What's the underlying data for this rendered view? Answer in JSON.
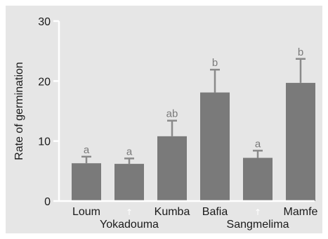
{
  "chart_data": {
    "type": "bar",
    "title": "",
    "xlabel": "",
    "ylabel": "Rate of germination",
    "ylim": [
      0,
      30
    ],
    "yticks": [
      "0",
      "10",
      "20",
      "30"
    ],
    "categories": [
      "Loum",
      "↑",
      "Kumba",
      "Bafia",
      "↑",
      "Mamfe"
    ],
    "values": [
      6.3,
      6.2,
      10.8,
      18.1,
      7.2,
      19.7
    ],
    "errors": [
      1.1,
      0.9,
      2.6,
      3.8,
      1.2,
      4.0
    ],
    "significance": [
      "a",
      "a",
      "ab",
      "b",
      "a",
      "b"
    ],
    "groups": [
      {
        "label": "Yokadouma",
        "category_index": 1
      },
      {
        "label": "Sangmelima",
        "category_index": 4
      }
    ],
    "grid": false,
    "colors": {
      "bar": "#7a7a7a",
      "error": "#8a8a8a",
      "axis": "#ffffff",
      "background": "#e6e6e6",
      "sig_text": "#7a7a7a",
      "ditto": "#ffffff"
    }
  }
}
